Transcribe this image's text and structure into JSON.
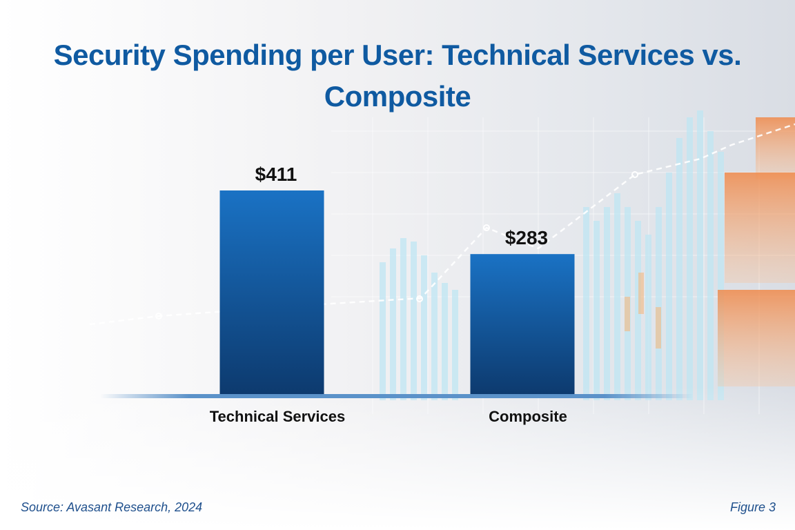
{
  "chart_data": {
    "type": "bar",
    "title": "Security Spending per User: Technical Services vs. Composite",
    "categories": [
      "Technical Services",
      "Composite"
    ],
    "values": [
      411,
      283
    ],
    "value_labels": [
      "$411",
      "$283"
    ],
    "ylim": [
      0,
      411
    ],
    "grid": false,
    "legend": "none",
    "xlabel": "",
    "ylabel": ""
  },
  "footer": {
    "source": "Source: Avasant Research, 2024",
    "figure": "Figure 3"
  },
  "colors": {
    "title": "#0f5aa1",
    "bar_top": "#1a72c4",
    "bar_bottom": "#0d3a6e",
    "baseline": "#5b92c9",
    "labels": "#111111",
    "footer": "#1e4f8c"
  }
}
